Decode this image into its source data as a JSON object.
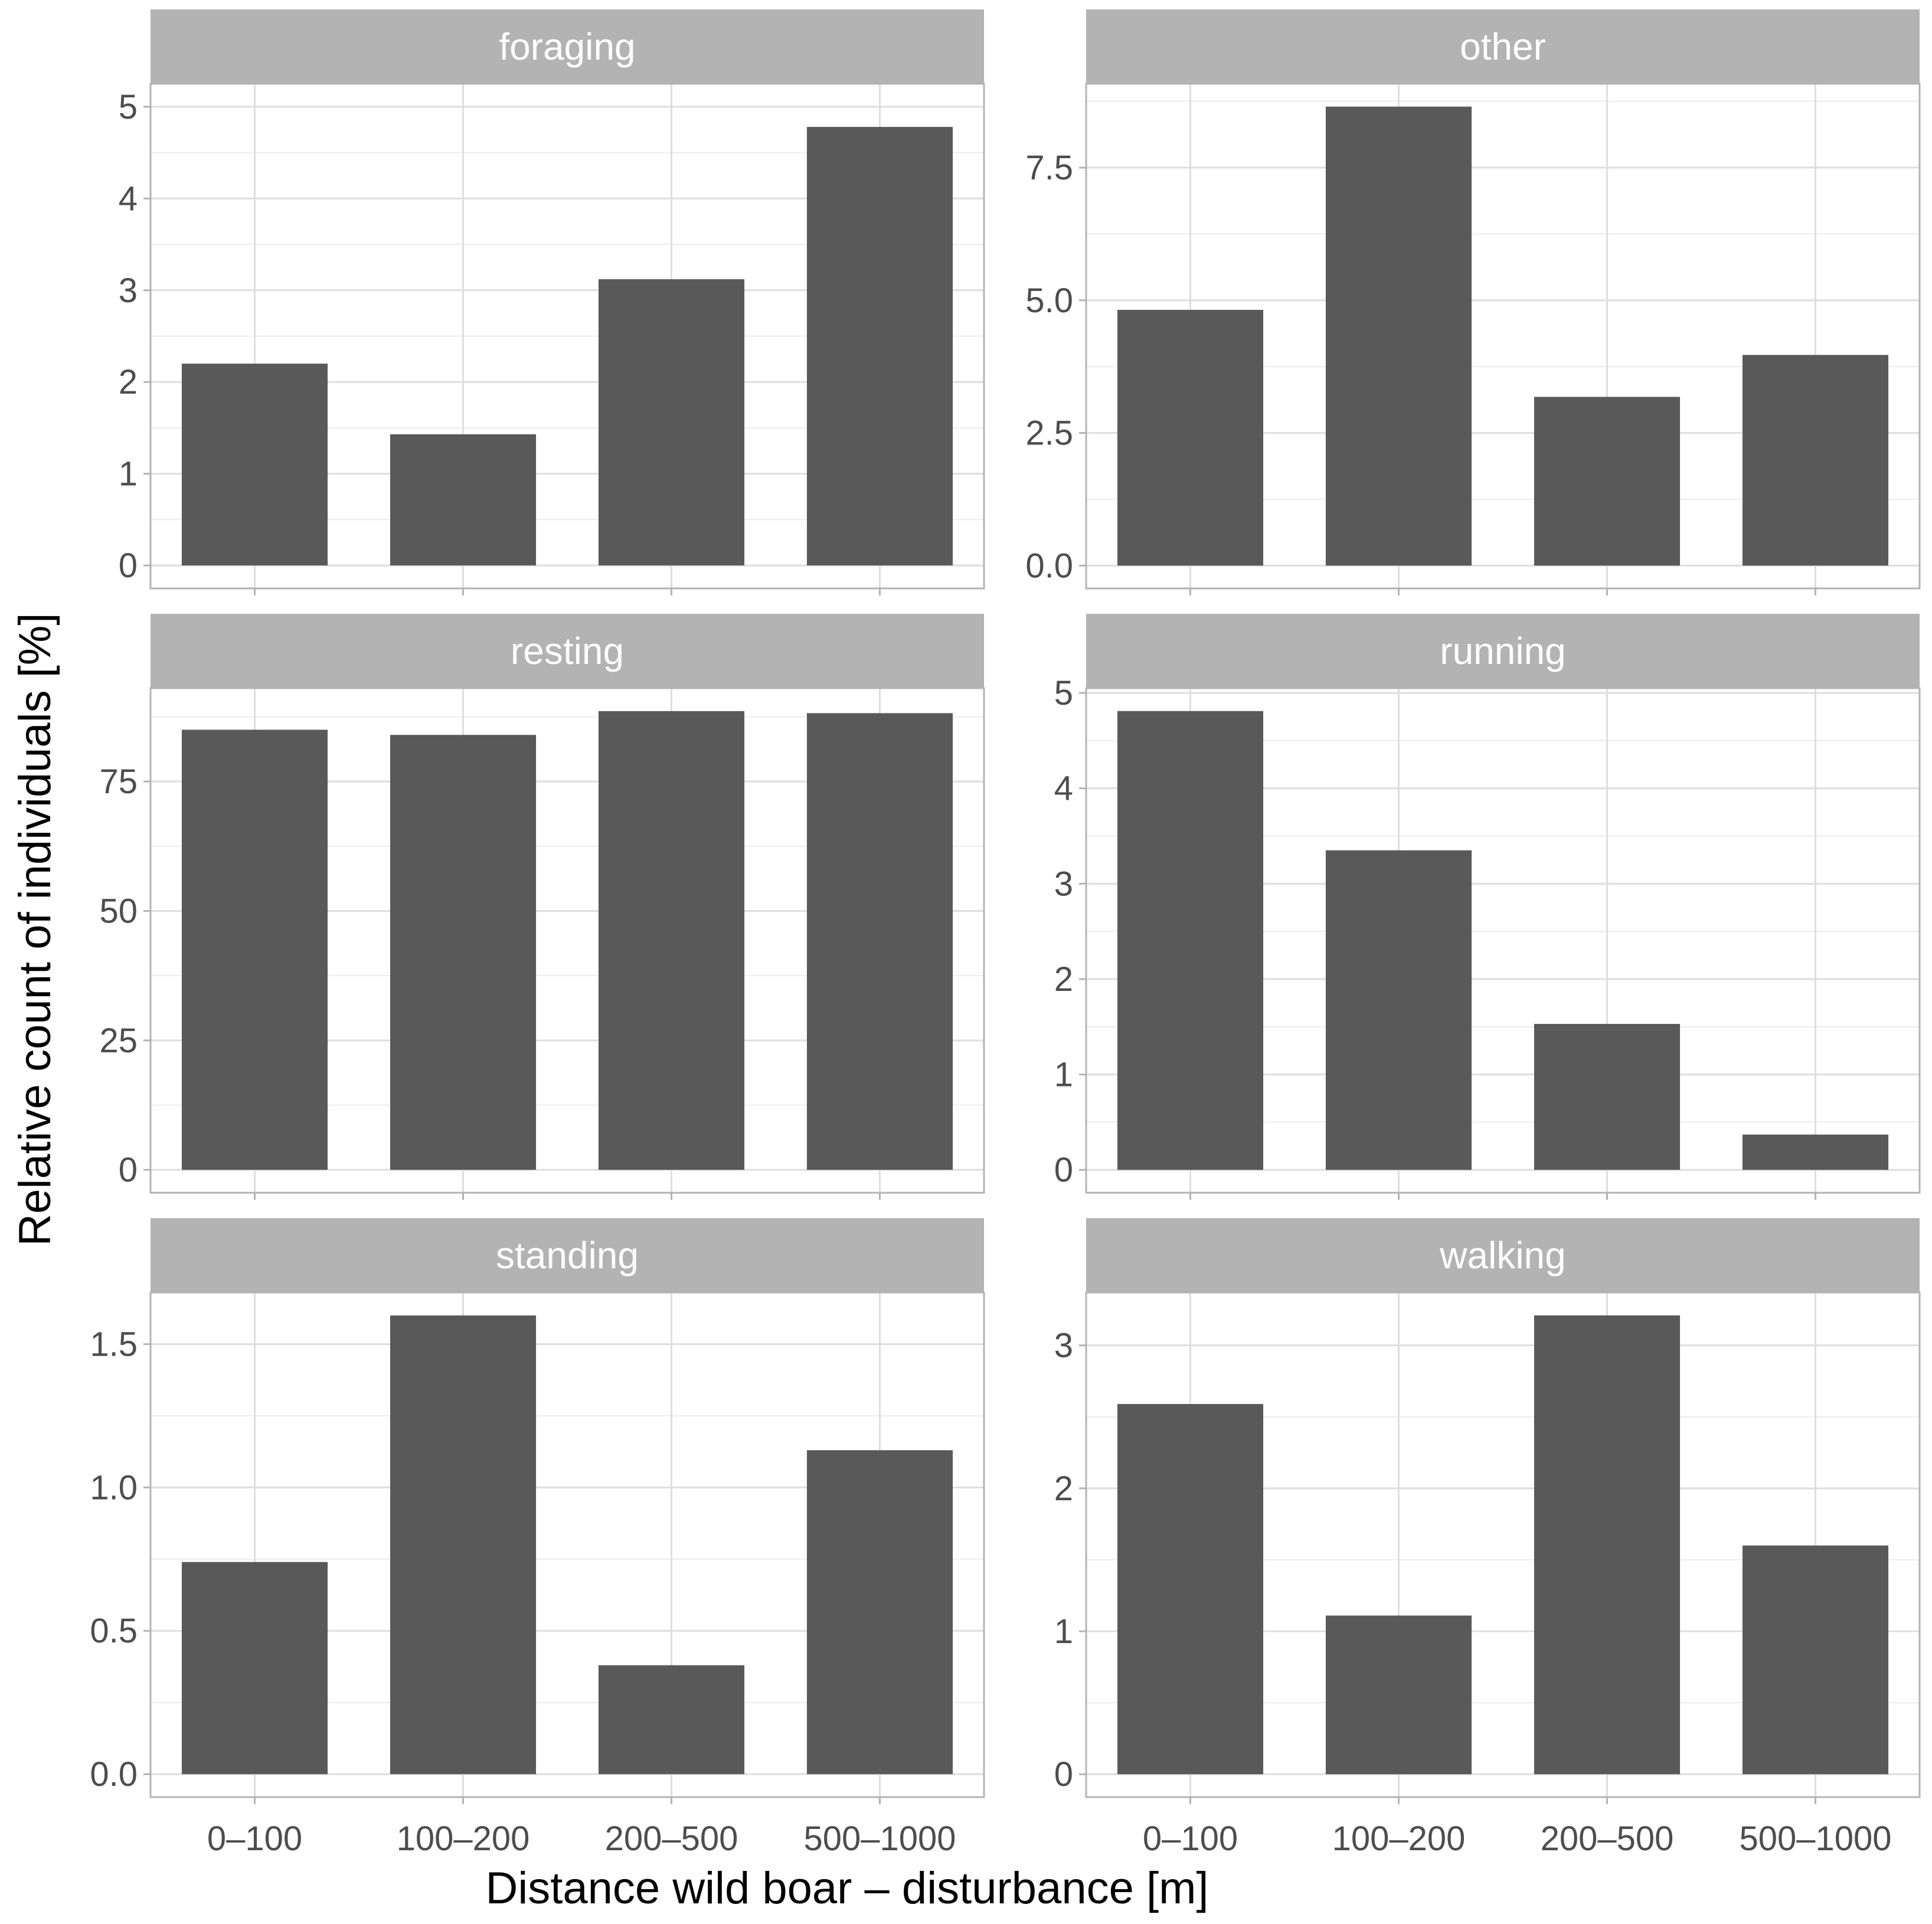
{
  "chart_data": {
    "type": "bar",
    "layout": "facet-grid",
    "xlabel": "Distance wild boar – disturbance [m]",
    "ylabel": "Relative count of individuals [%]",
    "categories": [
      "0–100",
      "100–200",
      "200–500",
      "500–1000"
    ],
    "panels": [
      {
        "name": "foraging",
        "values": [
          2.2,
          1.43,
          3.12,
          4.78
        ],
        "ylim": [
          -0.25,
          5.25
        ],
        "ticks": [
          0,
          1,
          2,
          3,
          4,
          5
        ],
        "tick_labels": [
          "0",
          "1",
          "2",
          "3",
          "4",
          "5"
        ]
      },
      {
        "name": "other",
        "values": [
          4.82,
          8.65,
          3.18,
          3.97
        ],
        "ylim": [
          -0.43,
          9.08
        ],
        "ticks": [
          0,
          2.5,
          5,
          7.5
        ],
        "tick_labels": [
          "0.0",
          "2.5",
          "5.0",
          "7.5"
        ]
      },
      {
        "name": "resting",
        "values": [
          85,
          84,
          88.6,
          88.2
        ],
        "ylim": [
          -4.43,
          93.03
        ],
        "ticks": [
          0,
          25,
          50,
          75
        ],
        "tick_labels": [
          "0",
          "25",
          "50",
          "75"
        ]
      },
      {
        "name": "running",
        "values": [
          4.81,
          3.35,
          1.53,
          0.37
        ],
        "ylim": [
          -0.24,
          5.05
        ],
        "ticks": [
          0,
          1,
          2,
          3,
          4,
          5
        ],
        "tick_labels": [
          "0",
          "1",
          "2",
          "3",
          "4",
          "5"
        ]
      },
      {
        "name": "standing",
        "values": [
          0.74,
          1.6,
          0.38,
          1.13
        ],
        "ylim": [
          -0.08,
          1.68
        ],
        "ticks": [
          0,
          0.5,
          1,
          1.5
        ],
        "tick_labels": [
          "0.0",
          "0.5",
          "1.0",
          "1.5"
        ]
      },
      {
        "name": "walking",
        "values": [
          2.59,
          1.11,
          3.21,
          1.6
        ],
        "ylim": [
          -0.16,
          3.37
        ],
        "ticks": [
          0,
          1,
          2,
          3
        ],
        "tick_labels": [
          "0",
          "1",
          "2",
          "3"
        ]
      }
    ],
    "colors": {
      "bar": "#595959",
      "strip": "#b3b3b3"
    }
  }
}
